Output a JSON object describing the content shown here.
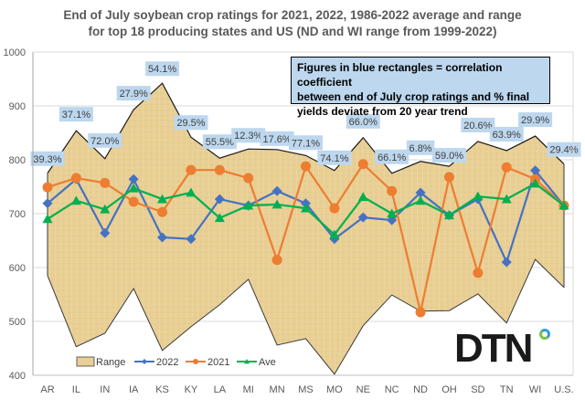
{
  "chart_data": {
    "type": "line",
    "title": "End of July soybean crop ratings for 2021, 2022, 1986-2022 average and range for top 18 producing states and US (ND and WI range from 1999-2022)",
    "title_lines": [
      "End of July soybean crop ratings for 2021, 2022, 1986-2022 average and range",
      "for top 18 producing states and US (ND and WI range from 1999-2022)"
    ],
    "xlabel": "",
    "ylabel": "",
    "ylim": [
      400,
      1000
    ],
    "yticks": [
      400,
      500,
      600,
      700,
      800,
      900,
      1000
    ],
    "grid": true,
    "legend_position": "bottom-left",
    "categories": [
      "AR",
      "IL",
      "IN",
      "IA",
      "KS",
      "KY",
      "LA",
      "MI",
      "MN",
      "MS",
      "MO",
      "NE",
      "NC",
      "ND",
      "OH",
      "SD",
      "TN",
      "WI",
      "U.S."
    ],
    "range": {
      "name": "Range",
      "high": [
        775,
        854,
        802,
        893,
        942,
        842,
        803,
        820,
        819,
        808,
        780,
        841,
        775,
        797,
        788,
        834,
        817,
        844,
        792
      ],
      "low": [
        585,
        453,
        478,
        561,
        446,
        490,
        531,
        578,
        456,
        468,
        402,
        492,
        549,
        519,
        520,
        551,
        497,
        615,
        563
      ]
    },
    "series": [
      {
        "name": "2022",
        "color": "#4472c4",
        "marker": "diamond",
        "values": [
          719,
          764,
          664,
          764,
          656,
          653,
          727,
          715,
          742,
          719,
          653,
          693,
          688,
          739,
          697,
          727,
          610,
          780,
          715
        ]
      },
      {
        "name": "2021",
        "color": "#ed7d31",
        "marker": "circle",
        "values": [
          749,
          766,
          757,
          722,
          703,
          781,
          781,
          766,
          614,
          788,
          710,
          792,
          742,
          517,
          768,
          590,
          786,
          764,
          715
        ]
      },
      {
        "name": "Ave",
        "color": "#00b050",
        "marker": "triangle",
        "values": [
          690,
          724,
          708,
          747,
          727,
          739,
          692,
          715,
          717,
          710,
          661,
          731,
          700,
          724,
          697,
          732,
          727,
          756,
          715
        ]
      }
    ],
    "correlation_labels": [
      "39.3%",
      "37.1%",
      "72.0%",
      "27.9%",
      "54.1%",
      "29.5%",
      "55.5%",
      "12.3%",
      "17.6%",
      "77.1%",
      "74.1%",
      "66.0%",
      "66.1%",
      "6.8%",
      "59.0%",
      "20.6%",
      "63.9%",
      "29.9%",
      "29.4%"
    ],
    "annotation": "Figures in blue rectangles = correlation coefficient between end of July crop ratings and % final yields deviate from 20 year trend",
    "annotation_lines": [
      "Figures in blue rectangles = correlation coefficient",
      "between end of July crop ratings and % final",
      "yields deviate from 20 year trend"
    ]
  },
  "logo": {
    "text": "DTN"
  }
}
